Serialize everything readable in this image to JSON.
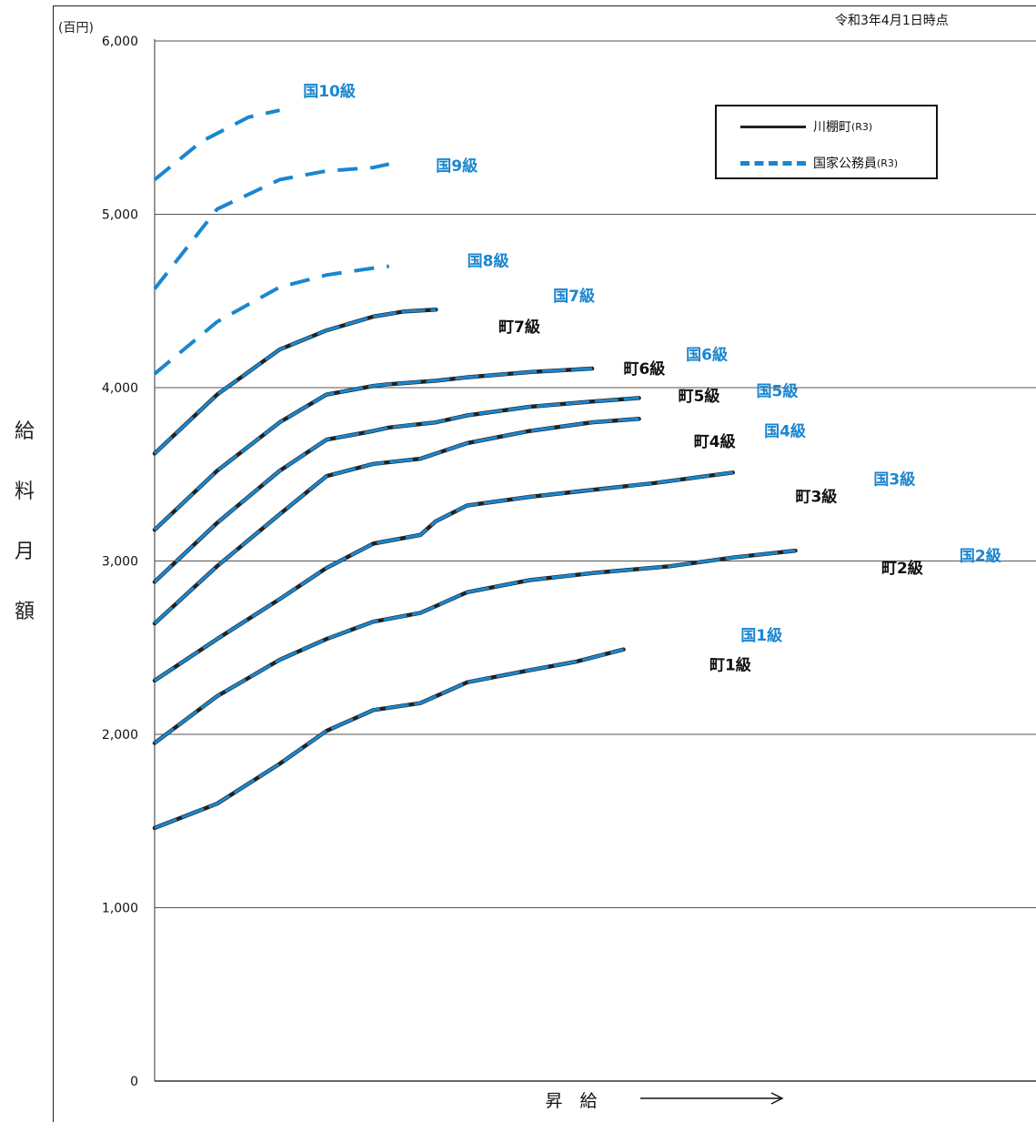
{
  "header": {
    "date_note": "令和3年4月1日時点",
    "unit": "(百円)"
  },
  "axes": {
    "ylabel": [
      "給",
      "料",
      "月",
      "額"
    ],
    "xlabel": "昇　給",
    "arrow": "→"
  },
  "legend": {
    "town": {
      "label": "川棚町",
      "tag": "(R3)"
    },
    "national": {
      "label": "国家公務員",
      "tag": "(R3)"
    }
  },
  "colors": {
    "national": "#1a86d0",
    "town": "#222222",
    "grid": "#555555",
    "town_label": "#111111"
  },
  "chart_data": {
    "type": "line",
    "title": "",
    "xlabel": "昇　給",
    "ylabel": "給料月額",
    "y_unit": "(百円)",
    "ylim": [
      0,
      6000
    ],
    "yticks": [
      "0",
      "1,000",
      "2,000",
      "3,000",
      "4,000",
      "5,000",
      "6,000"
    ],
    "yticks_values": [
      0,
      1000,
      2000,
      3000,
      4000,
      5000,
      6000
    ],
    "grid": "horizontal",
    "legend_position": "top-right",
    "x_axis": "salary step progression (unlabeled)",
    "series": [
      {
        "name": "国1級",
        "kind": "both",
        "x": [
          0,
          8,
          16,
          22,
          28,
          34,
          36,
          40,
          48,
          54,
          60
        ],
        "y": [
          1460,
          1600,
          1830,
          2020,
          2140,
          2180,
          2220,
          2300,
          2370,
          2420,
          2490
        ]
      },
      {
        "name": "国2級",
        "kind": "both",
        "x": [
          0,
          8,
          16,
          22,
          28,
          34,
          36,
          40,
          48,
          56,
          66,
          74,
          82
        ],
        "y": [
          1950,
          2220,
          2430,
          2550,
          2650,
          2700,
          2740,
          2820,
          2890,
          2930,
          2970,
          3020,
          3060
        ]
      },
      {
        "name": "国3級",
        "kind": "both",
        "x": [
          0,
          8,
          16,
          22,
          28,
          34,
          36,
          40,
          48,
          56,
          64,
          74
        ],
        "y": [
          2310,
          2550,
          2780,
          2960,
          3100,
          3150,
          3230,
          3320,
          3370,
          3410,
          3450,
          3510
        ]
      },
      {
        "name": "国4級",
        "kind": "both",
        "x": [
          0,
          8,
          16,
          22,
          28,
          34,
          36,
          40,
          48,
          56,
          62
        ],
        "y": [
          2640,
          2970,
          3270,
          3490,
          3560,
          3590,
          3620,
          3680,
          3750,
          3800,
          3820
        ]
      },
      {
        "name": "国5級",
        "kind": "both",
        "x": [
          0,
          8,
          16,
          22,
          28,
          30,
          36,
          40,
          48,
          56,
          62
        ],
        "y": [
          2880,
          3220,
          3520,
          3700,
          3750,
          3770,
          3800,
          3840,
          3890,
          3920,
          3940
        ]
      },
      {
        "name": "国6級",
        "kind": "both",
        "x": [
          0,
          8,
          16,
          22,
          28,
          30,
          36,
          40,
          48,
          56
        ],
        "y": [
          3180,
          3520,
          3800,
          3960,
          4010,
          4020,
          4040,
          4060,
          4090,
          4110
        ]
      },
      {
        "name": "国7級",
        "kind": "both",
        "x": [
          0,
          8,
          16,
          22,
          28,
          32,
          36
        ],
        "y": [
          3620,
          3960,
          4220,
          4330,
          4410,
          4440,
          4450
        ]
      },
      {
        "name": "国8級",
        "kind": "national",
        "x": [
          0,
          8,
          16,
          22,
          28,
          30
        ],
        "y": [
          4080,
          4380,
          4580,
          4650,
          4690,
          4700
        ]
      },
      {
        "name": "国9級",
        "kind": "national",
        "x": [
          0,
          8,
          16,
          22,
          28,
          30
        ],
        "y": [
          4570,
          5030,
          5200,
          5250,
          5270,
          5290
        ]
      },
      {
        "name": "国10級",
        "kind": "national",
        "x": [
          0,
          6,
          12,
          16
        ],
        "y": [
          5200,
          5420,
          5560,
          5600
        ]
      }
    ],
    "annotations": [
      {
        "text": "国10級",
        "color": "national",
        "x": 19,
        "y": 5680
      },
      {
        "text": "国9級",
        "color": "national",
        "x": 36,
        "y": 5250
      },
      {
        "text": "国8級",
        "color": "national",
        "x": 40,
        "y": 4700
      },
      {
        "text": "国7級",
        "color": "national",
        "x": 51,
        "y": 4500
      },
      {
        "text": "町7級",
        "color": "town",
        "x": 44,
        "y": 4320
      },
      {
        "text": "国6級",
        "color": "national",
        "x": 68,
        "y": 4160
      },
      {
        "text": "町6級",
        "color": "town",
        "x": 60,
        "y": 4080
      },
      {
        "text": "国5級",
        "color": "national",
        "x": 77,
        "y": 3950
      },
      {
        "text": "町5級",
        "color": "town",
        "x": 67,
        "y": 3920
      },
      {
        "text": "国4級",
        "color": "national",
        "x": 78,
        "y": 3720
      },
      {
        "text": "町4級",
        "color": "town",
        "x": 69,
        "y": 3660
      },
      {
        "text": "国3級",
        "color": "national",
        "x": 92,
        "y": 3440
      },
      {
        "text": "町3級",
        "color": "town",
        "x": 82,
        "y": 3340
      },
      {
        "text": "国2級",
        "color": "national",
        "x": 103,
        "y": 3000
      },
      {
        "text": "町2級",
        "color": "town",
        "x": 93,
        "y": 2930
      },
      {
        "text": "国1級",
        "color": "national",
        "x": 75,
        "y": 2540
      },
      {
        "text": "町1級",
        "color": "town",
        "x": 71,
        "y": 2370
      }
    ]
  }
}
